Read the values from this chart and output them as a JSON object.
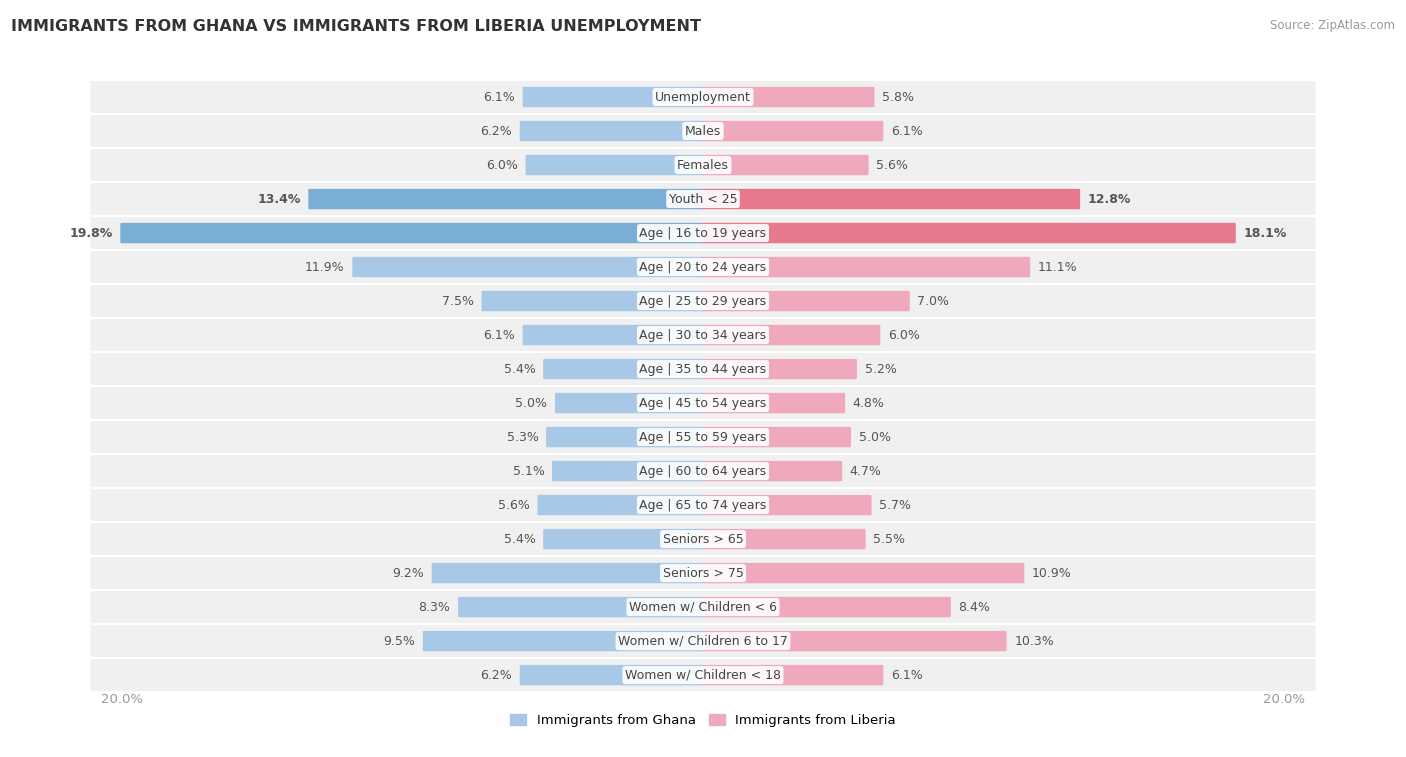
{
  "title": "IMMIGRANTS FROM GHANA VS IMMIGRANTS FROM LIBERIA UNEMPLOYMENT",
  "source": "Source: ZipAtlas.com",
  "categories": [
    "Unemployment",
    "Males",
    "Females",
    "Youth < 25",
    "Age | 16 to 19 years",
    "Age | 20 to 24 years",
    "Age | 25 to 29 years",
    "Age | 30 to 34 years",
    "Age | 35 to 44 years",
    "Age | 45 to 54 years",
    "Age | 55 to 59 years",
    "Age | 60 to 64 years",
    "Age | 65 to 74 years",
    "Seniors > 65",
    "Seniors > 75",
    "Women w/ Children < 6",
    "Women w/ Children 6 to 17",
    "Women w/ Children < 18"
  ],
  "ghana_values": [
    6.1,
    6.2,
    6.0,
    13.4,
    19.8,
    11.9,
    7.5,
    6.1,
    5.4,
    5.0,
    5.3,
    5.1,
    5.6,
    5.4,
    9.2,
    8.3,
    9.5,
    6.2
  ],
  "liberia_values": [
    5.8,
    6.1,
    5.6,
    12.8,
    18.1,
    11.1,
    7.0,
    6.0,
    5.2,
    4.8,
    5.0,
    4.7,
    5.7,
    5.5,
    10.9,
    8.4,
    10.3,
    6.1
  ],
  "ghana_color_normal": "#a8c8e8",
  "liberia_color_normal": "#f0a8bc",
  "ghana_color_highlight": "#7aaed4",
  "liberia_color_highlight": "#e8788c",
  "highlight_rows": [
    3,
    4
  ],
  "max_value": 20.0,
  "background_color": "#ffffff",
  "row_bg": "#f0f0f0",
  "label_color": "#555555",
  "title_color": "#333333",
  "axis_label_color": "#999999",
  "legend_ghana": "Immigrants from Ghana",
  "legend_liberia": "Immigrants from Liberia"
}
